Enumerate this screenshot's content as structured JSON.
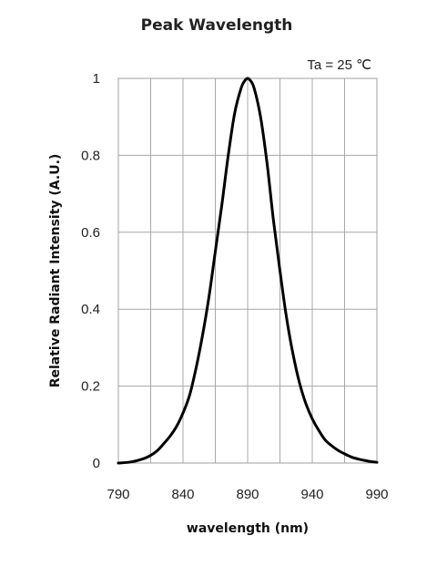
{
  "chart_data": {
    "type": "line",
    "title": "Peak Wavelength",
    "xlabel": "wavelength (nm)",
    "ylabel": "Relative Radiant Intensity (A.U.)",
    "annotation": "Ta = 25 ℃",
    "xlim": [
      790,
      990
    ],
    "ylim": [
      0,
      1
    ],
    "x_ticks": [
      "790",
      "840",
      "890",
      "940",
      "990"
    ],
    "y_ticks": [
      "0",
      "0.2",
      "0.4",
      "0.6",
      "0.8",
      "1"
    ],
    "x_tick_values": [
      790,
      840,
      890,
      940,
      990
    ],
    "y_tick_values": [
      0,
      0.2,
      0.4,
      0.6,
      0.8,
      1
    ],
    "x_grid_values": [
      815,
      840,
      865,
      890,
      915,
      940,
      965
    ],
    "y_grid_values": [
      0.2,
      0.4,
      0.6,
      0.8
    ],
    "grid": true,
    "line_color": "#000000",
    "series": [
      {
        "x": [
          790,
          800,
          810,
          815,
          820,
          825,
          830,
          835,
          840,
          845,
          850,
          855,
          860,
          865,
          870,
          875,
          880,
          885,
          888,
          890,
          892,
          895,
          900,
          905,
          910,
          915,
          920,
          925,
          930,
          935,
          940,
          945,
          950,
          955,
          960,
          965,
          970,
          975,
          980,
          985,
          990
        ],
        "y": [
          0.0,
          0.003,
          0.012,
          0.02,
          0.032,
          0.05,
          0.07,
          0.095,
          0.13,
          0.175,
          0.245,
          0.33,
          0.43,
          0.55,
          0.67,
          0.8,
          0.91,
          0.975,
          0.995,
          1.0,
          0.995,
          0.975,
          0.9,
          0.78,
          0.63,
          0.5,
          0.38,
          0.285,
          0.21,
          0.155,
          0.115,
          0.085,
          0.06,
          0.045,
          0.033,
          0.024,
          0.016,
          0.011,
          0.007,
          0.004,
          0.002
        ]
      }
    ]
  }
}
